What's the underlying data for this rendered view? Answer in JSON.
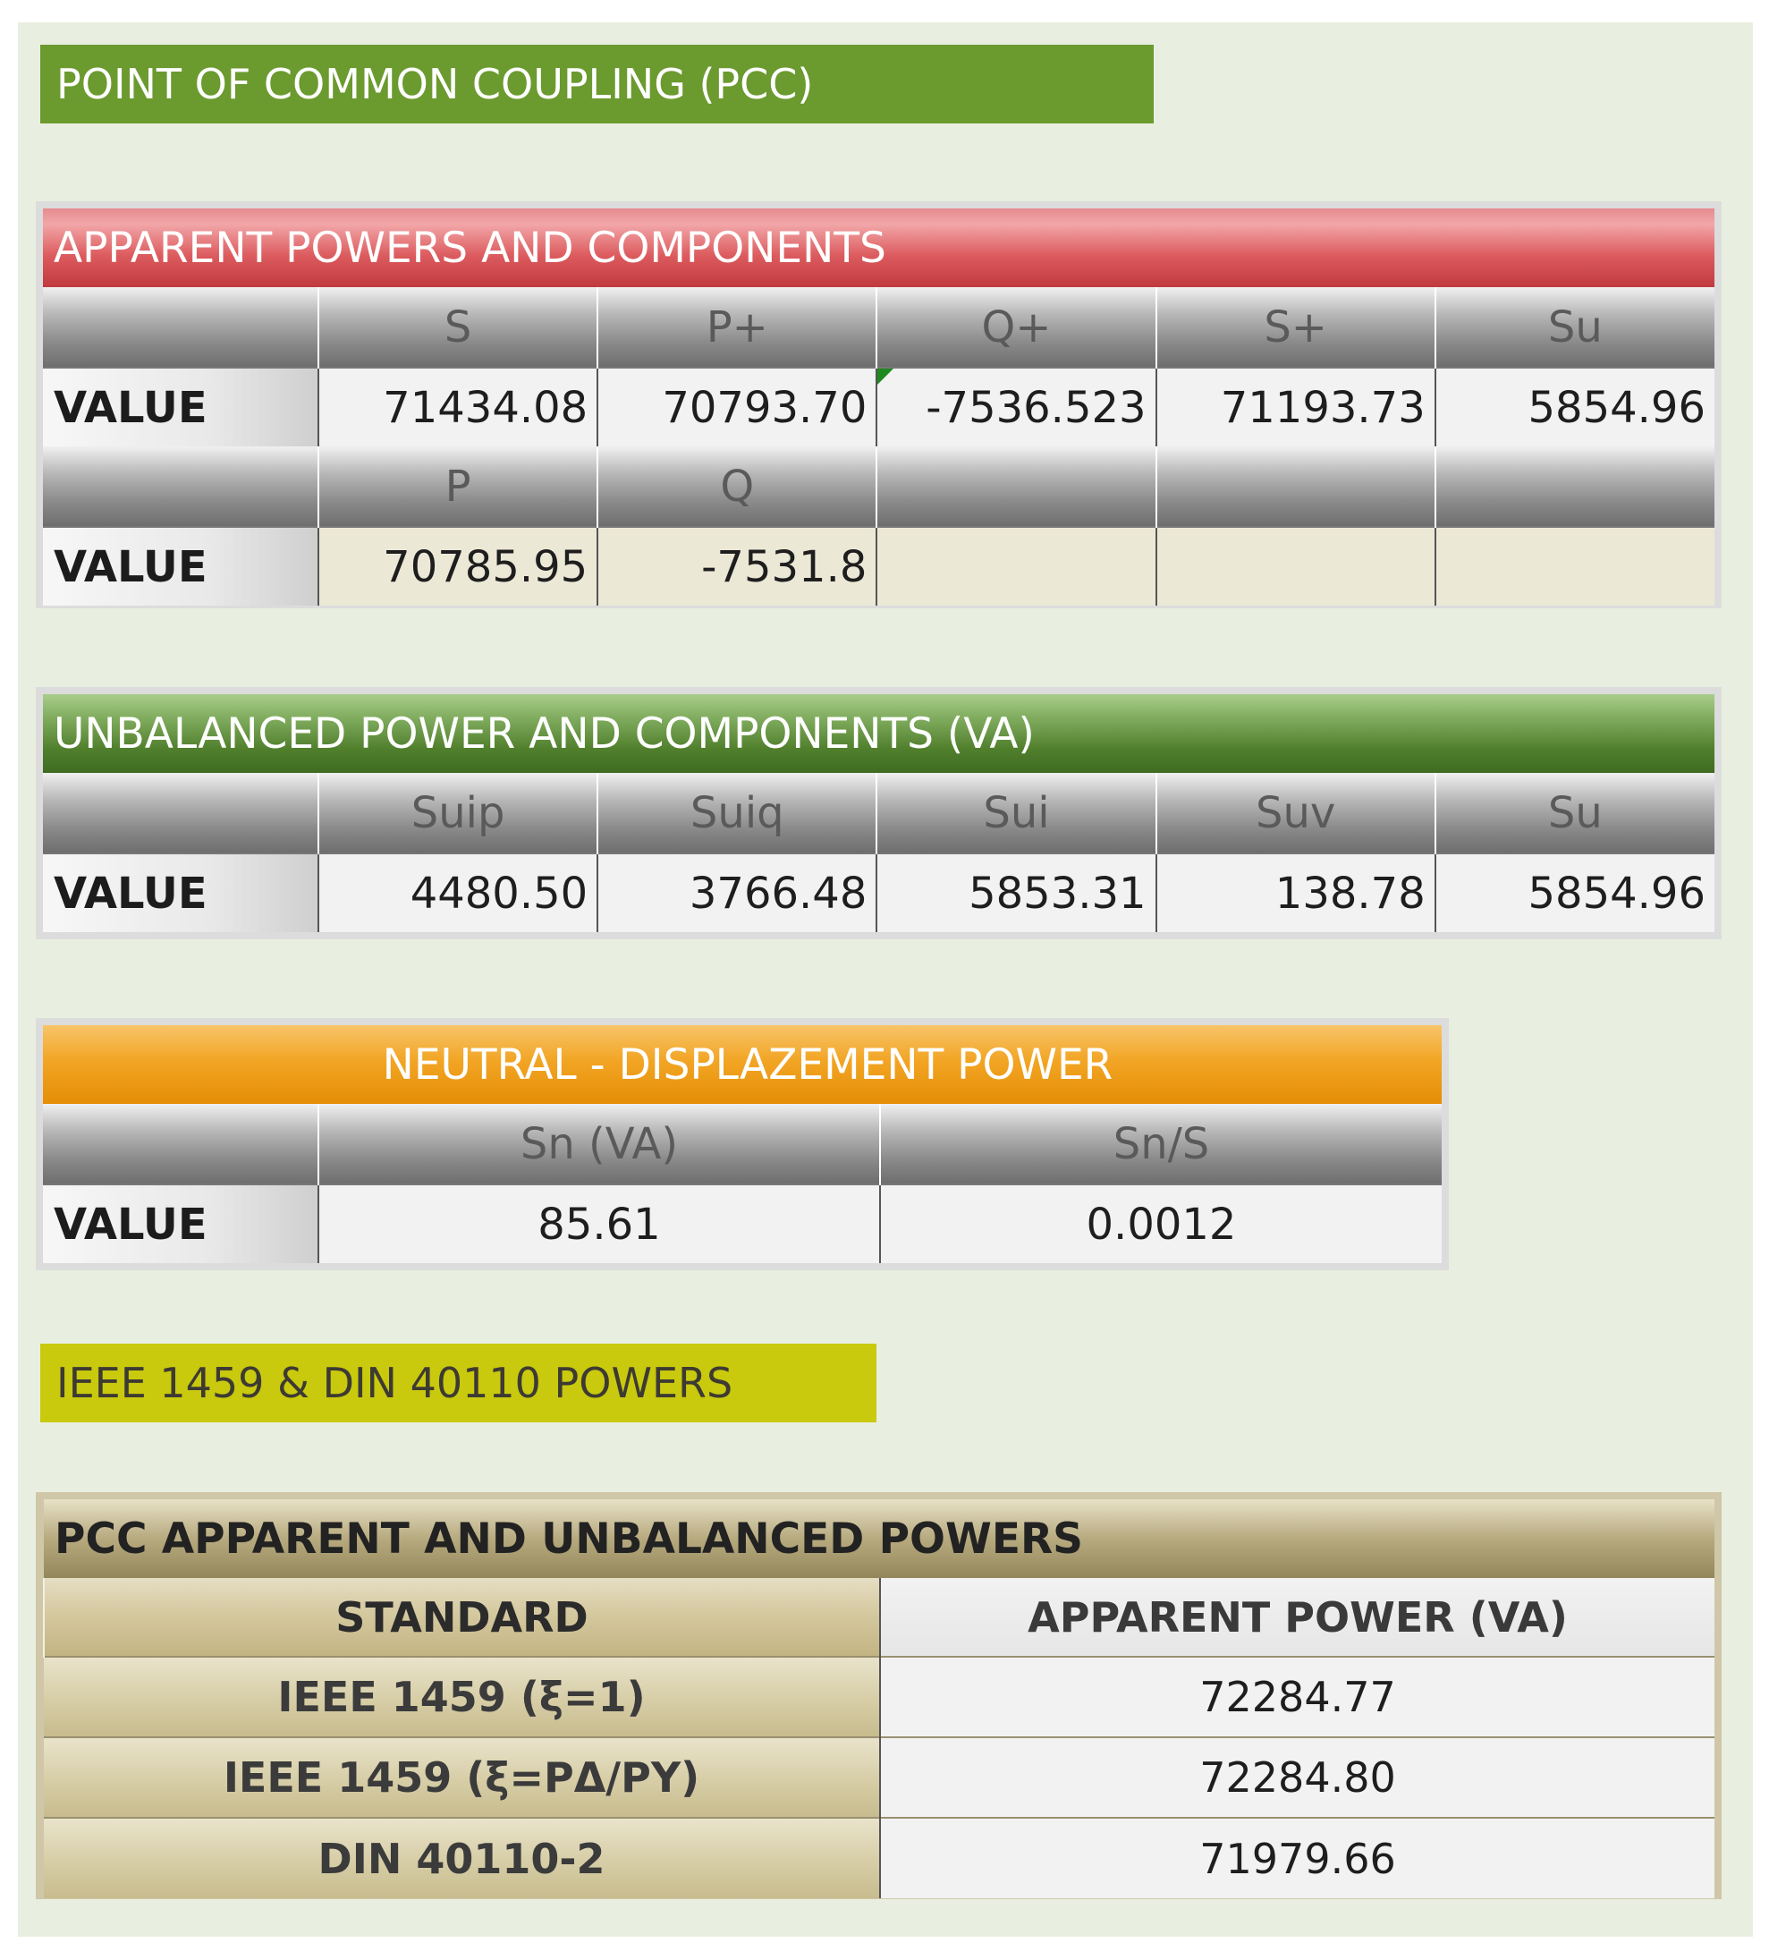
{
  "pcc_banner": "POINT OF COMMON COUPLING (PCC)",
  "apparent": {
    "title": "APPARENT POWERS AND COMPONENTS",
    "header1": [
      "",
      "S",
      "P+",
      "Q+",
      "S+",
      "Su"
    ],
    "row1": {
      "label": "VALUE",
      "values": [
        "71434.08",
        "70793.70",
        "-7536.523",
        "71193.73",
        "5854.96"
      ]
    },
    "header2": [
      "",
      "P",
      "Q",
      "",
      "",
      ""
    ],
    "row2": {
      "label": "VALUE",
      "values": [
        "70785.95",
        "-7531.8",
        "",
        "",
        ""
      ]
    }
  },
  "unbalanced": {
    "title": "UNBALANCED POWER AND COMPONENTS  (VA)",
    "header": [
      "",
      "Suip",
      "Suiq",
      "Sui",
      "Suv",
      "Su"
    ],
    "row": {
      "label": "VALUE",
      "values": [
        "4480.50",
        "3766.48",
        "5853.31",
        "138.78",
        "5854.96"
      ]
    }
  },
  "neutral": {
    "title": "NEUTRAL - DISPLAZEMENT POWER",
    "header": [
      "",
      "Sn (VA)",
      "Sn/S"
    ],
    "row": {
      "label": "VALUE",
      "values": [
        "85.61",
        "0.0012"
      ]
    }
  },
  "ieee_banner": "IEEE 1459 & DIN 40110 POWERS",
  "pcc_apparent": {
    "title": "PCC APPARENT AND UNBALANCED POWERS",
    "col_standard": "STANDARD",
    "col_apparent": "APPARENT POWER (VA)",
    "rows": [
      {
        "standard": "IEEE 1459 (ξ=1)",
        "value": "72284.77"
      },
      {
        "standard": "IEEE 1459 (ξ=PΔ/PY)",
        "value": "72284.80"
      },
      {
        "standard": "DIN 40110-2",
        "value": "71979.66"
      }
    ]
  },
  "colors": {
    "panel_bg": "#e9efe0",
    "pcc_banner": "#6b9a2f",
    "ieee_banner": "#c9c90d",
    "apparent_title": "#d9565a",
    "unbalanced_title": "#507f2c",
    "neutral_title": "#f2a524",
    "pcc_apparent_title": "#b7aa7f"
  }
}
